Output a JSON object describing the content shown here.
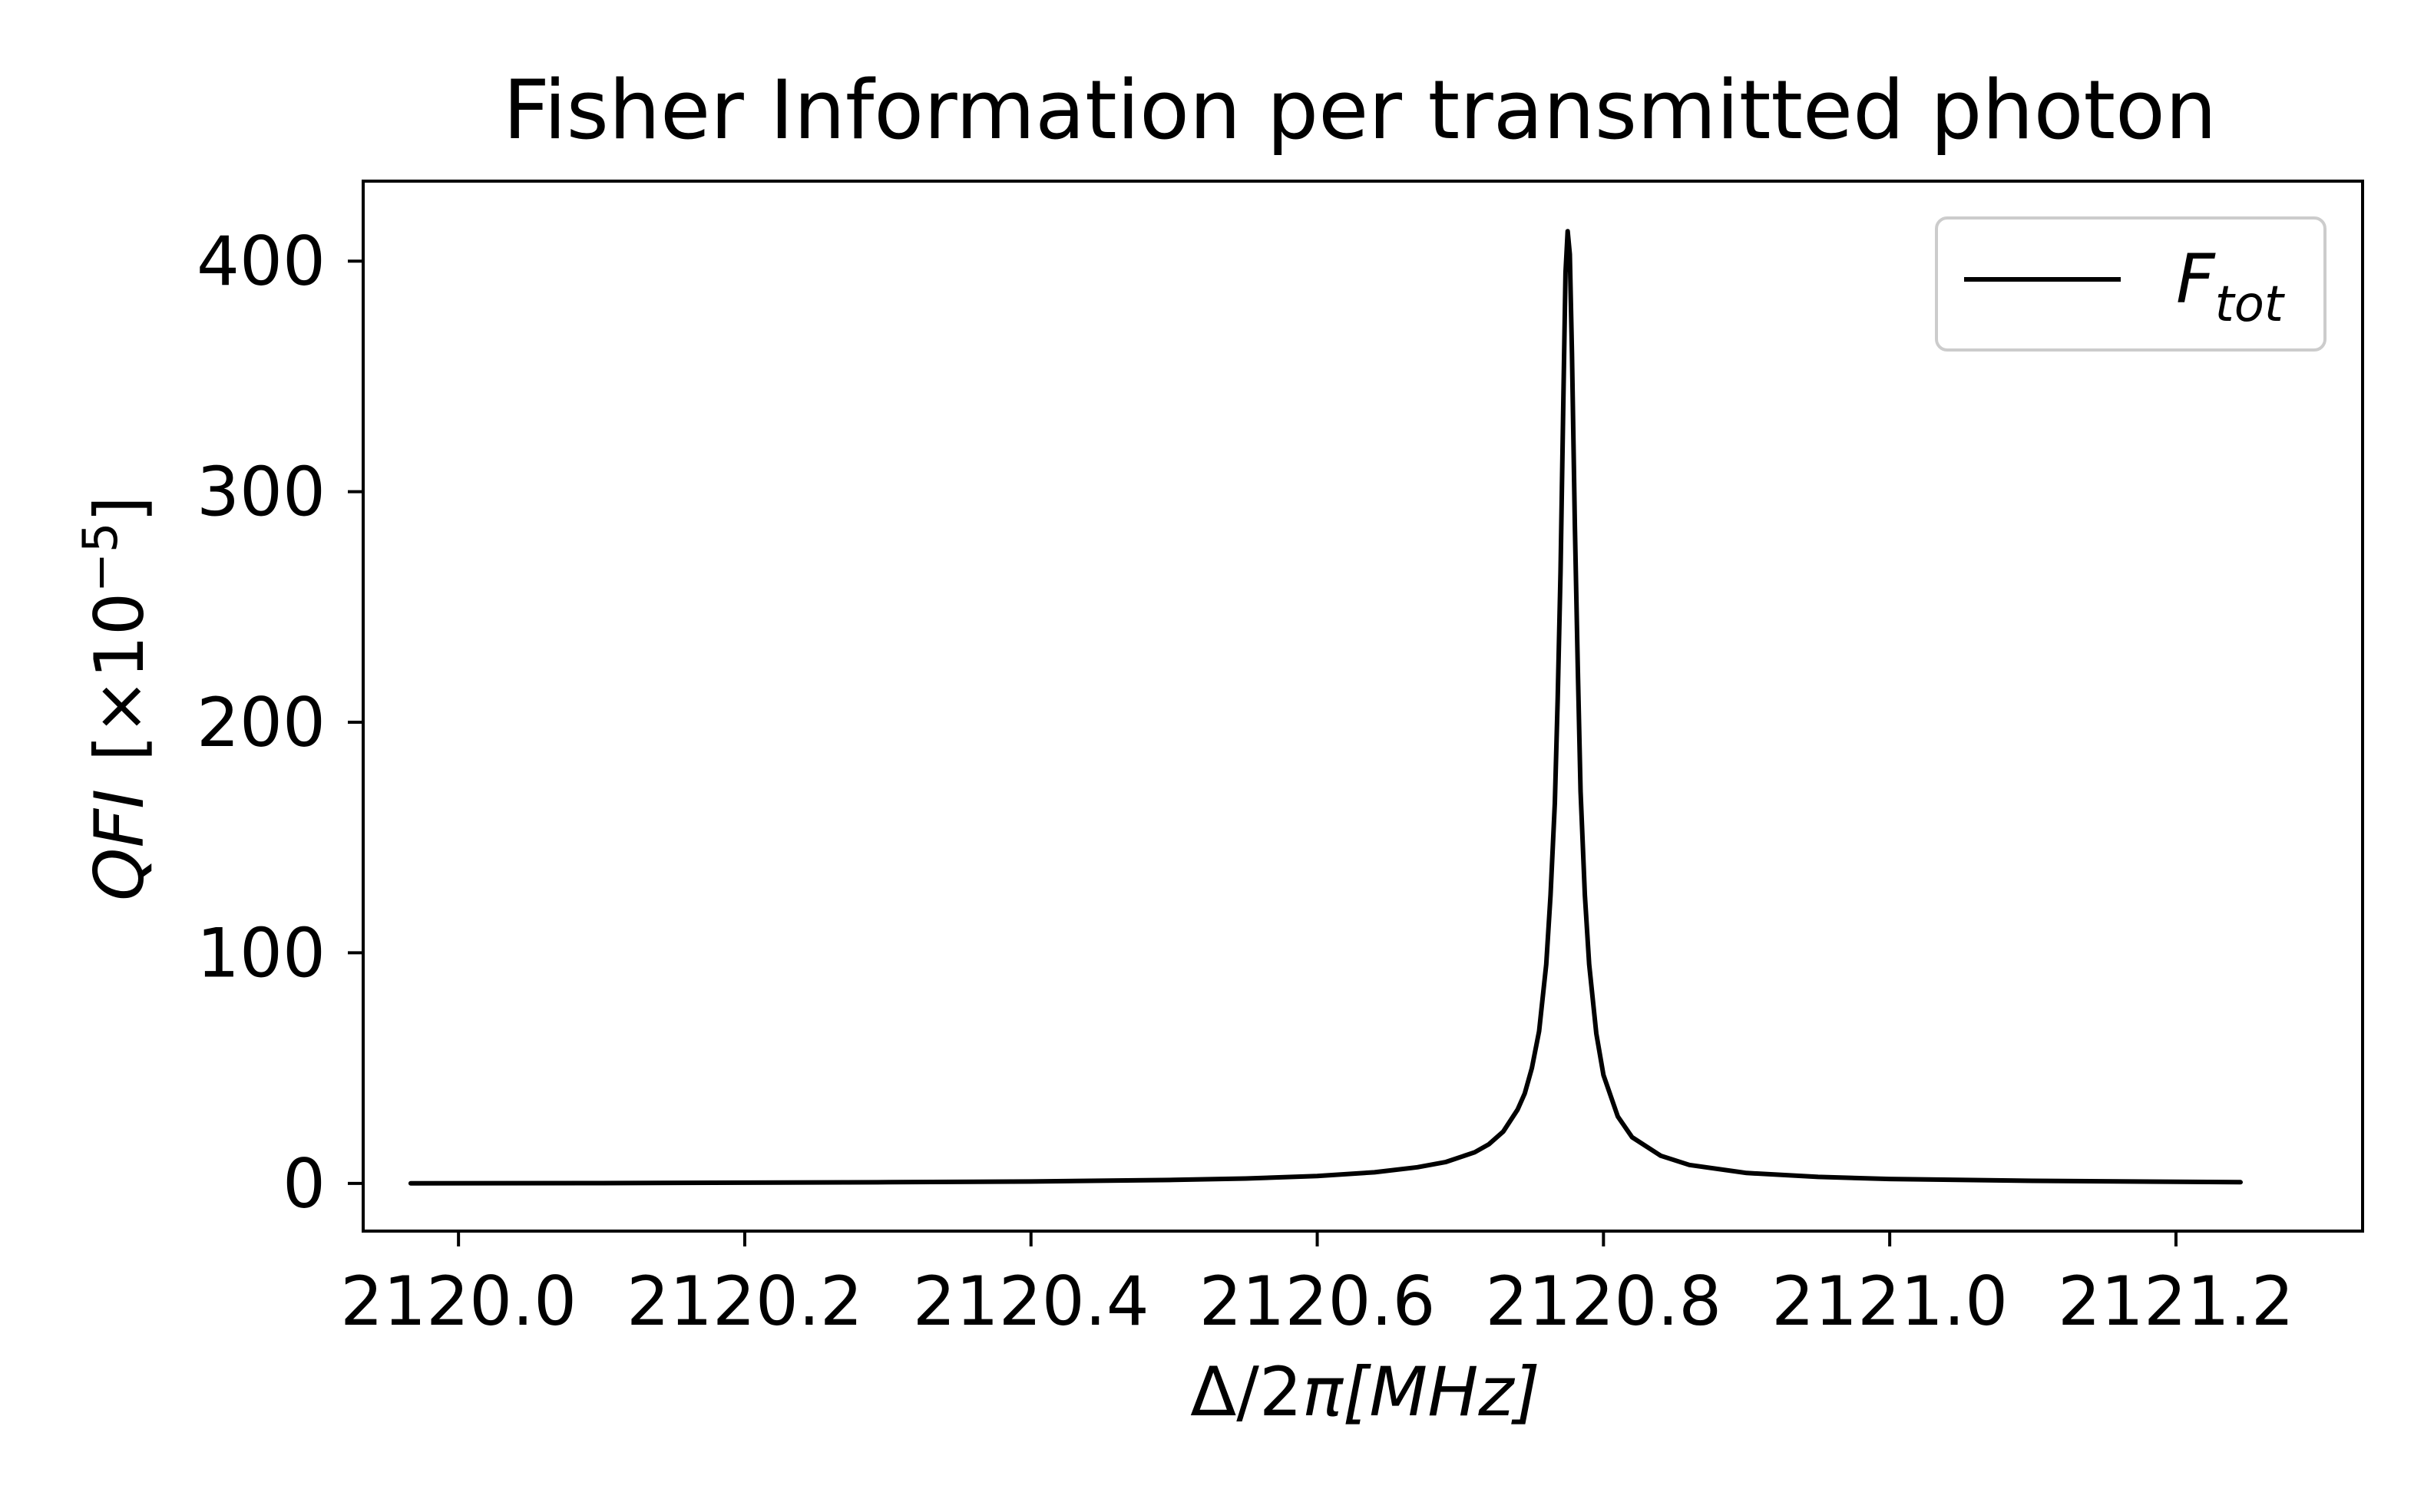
{
  "chart_data": {
    "type": "line",
    "title": "Fisher Information per transmitted photon",
    "xlabel": {
      "main": "Δ/2",
      "italic": "π[MHz]"
    },
    "ylabel": {
      "italic": "QFI",
      "rest": "[×10",
      "exp": "−5",
      "close": "]"
    },
    "xlim": [
      2119.9334,
      2121.3304
    ],
    "ylim": [
      -20.7,
      434.7
    ],
    "x_ticks": [
      {
        "value": 2120.0,
        "label": "2120.0"
      },
      {
        "value": 2120.2,
        "label": "2120.2"
      },
      {
        "value": 2120.4,
        "label": "2120.4"
      },
      {
        "value": 2120.6,
        "label": "2120.6"
      },
      {
        "value": 2120.8,
        "label": "2120.8"
      },
      {
        "value": 2121.0,
        "label": "2121.0"
      },
      {
        "value": 2121.2,
        "label": "2121.2"
      }
    ],
    "y_ticks": [
      {
        "value": 0,
        "label": "0"
      },
      {
        "value": 100,
        "label": "100"
      },
      {
        "value": 200,
        "label": "200"
      },
      {
        "value": 300,
        "label": "300"
      },
      {
        "value": 400,
        "label": "400"
      }
    ],
    "legend": {
      "position": "top-right",
      "entries": [
        {
          "base": "F",
          "sub": "tot"
        }
      ]
    },
    "grid": false,
    "series": [
      {
        "color": "#000000",
        "points": [
          [
            2119.9666,
            0.0
          ],
          [
            2120.1,
            0.1
          ],
          [
            2120.2,
            0.3
          ],
          [
            2120.3,
            0.5
          ],
          [
            2120.4,
            0.8
          ],
          [
            2120.5,
            1.5
          ],
          [
            2120.55,
            2.1
          ],
          [
            2120.6,
            3.2
          ],
          [
            2120.64,
            4.8
          ],
          [
            2120.67,
            7.0
          ],
          [
            2120.69,
            9.3
          ],
          [
            2120.71,
            13.5
          ],
          [
            2120.72,
            17.0
          ],
          [
            2120.73,
            22.5
          ],
          [
            2120.74,
            32.0
          ],
          [
            2120.745,
            39.0
          ],
          [
            2120.75,
            50.0
          ],
          [
            2120.755,
            66.0
          ],
          [
            2120.76,
            95.0
          ],
          [
            2120.763,
            125.0
          ],
          [
            2120.766,
            165.0
          ],
          [
            2120.768,
            210.0
          ],
          [
            2120.77,
            265.0
          ],
          [
            2120.772,
            340.0
          ],
          [
            2120.7735,
            395.0
          ],
          [
            2120.775,
            413.0
          ],
          [
            2120.7765,
            403.0
          ],
          [
            2120.778,
            360.0
          ],
          [
            2120.78,
            285.0
          ],
          [
            2120.782,
            225.0
          ],
          [
            2120.784,
            170.0
          ],
          [
            2120.787,
            125.0
          ],
          [
            2120.79,
            95.0
          ],
          [
            2120.795,
            65.0
          ],
          [
            2120.8,
            47.0
          ],
          [
            2120.81,
            29.0
          ],
          [
            2120.82,
            20.0
          ],
          [
            2120.84,
            12.0
          ],
          [
            2120.86,
            8.0
          ],
          [
            2120.9,
            4.5
          ],
          [
            2120.95,
            2.8
          ],
          [
            2121.0,
            1.9
          ],
          [
            2121.1,
            1.1
          ],
          [
            2121.2,
            0.7
          ],
          [
            2121.2451,
            0.5
          ]
        ]
      }
    ]
  }
}
